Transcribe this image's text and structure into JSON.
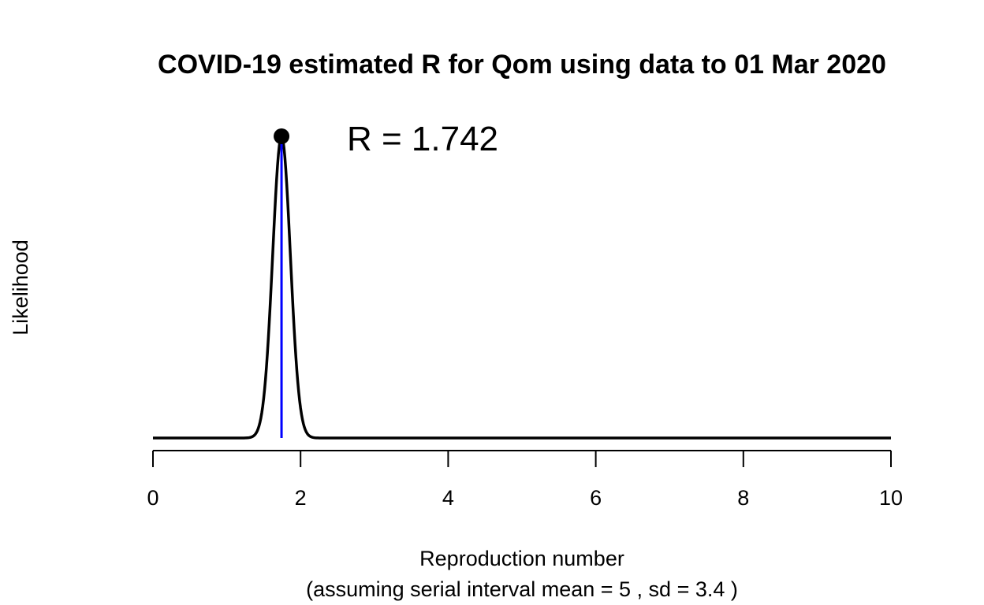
{
  "chart_data": {
    "type": "line",
    "title": "COVID-19 estimated R for Qom using data to 01 Mar 2020",
    "xlabel": "Reproduction number",
    "xlabel_sub": "(assuming serial interval mean = 5 , sd = 3.4 )",
    "ylabel": "Likelihood",
    "xlim": [
      0,
      10
    ],
    "x_ticks": [
      0,
      2,
      4,
      6,
      8,
      10
    ],
    "x_tick_labels": [
      "0",
      "2",
      "4",
      "6",
      "8",
      "10"
    ],
    "y_axis_shown": false,
    "grid": false,
    "peak": {
      "x": 1.742,
      "label": "R = 1.742"
    },
    "series": [
      {
        "shape": "normal-like peak",
        "mean": 1.742,
        "sd": 0.12,
        "color": "#000000"
      }
    ],
    "marker_line_color": "#0000ff"
  }
}
